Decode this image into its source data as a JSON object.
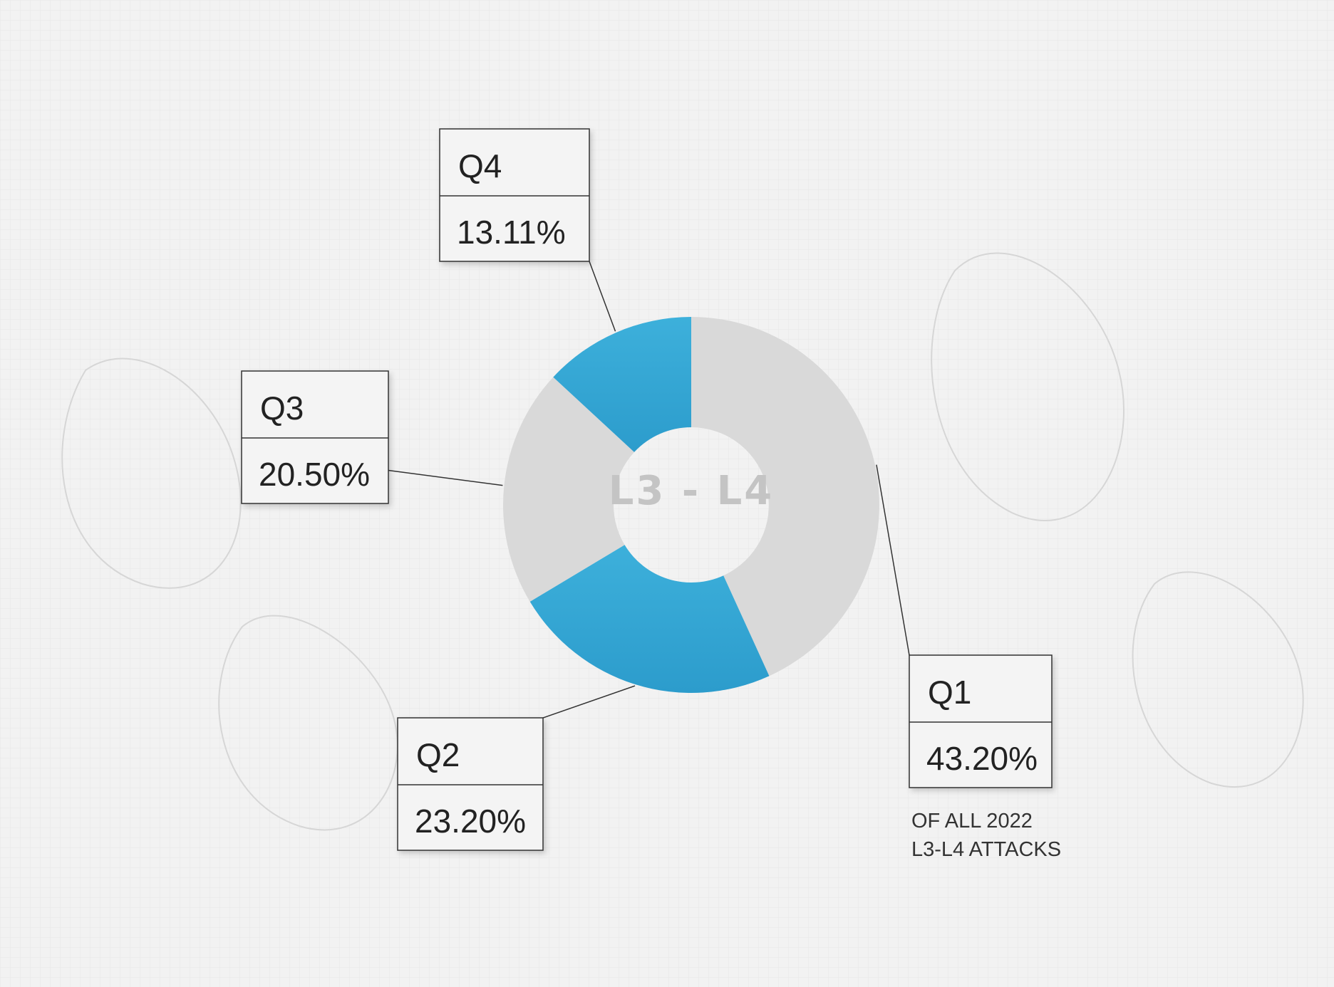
{
  "chart_data": {
    "type": "pie",
    "variant": "donut",
    "center_label": "L3 - L4",
    "slices": [
      {
        "label": "Q1",
        "value": 43.2,
        "display": "43.20%",
        "color": "#d9d9d9"
      },
      {
        "label": "Q2",
        "value": 23.2,
        "display": "23.20%",
        "color": "#34a7d4"
      },
      {
        "label": "Q3",
        "value": 20.5,
        "display": "20.50%",
        "color": "#d9d9d9"
      },
      {
        "label": "Q4",
        "value": 13.11,
        "display": "13.11%",
        "color": "#34a7d4"
      }
    ],
    "note_lines": [
      "OF ALL 2022",
      "L3-L4 ATTACKS"
    ],
    "start_angle": "12 o'clock",
    "direction": "clockwise",
    "legend": "none"
  }
}
